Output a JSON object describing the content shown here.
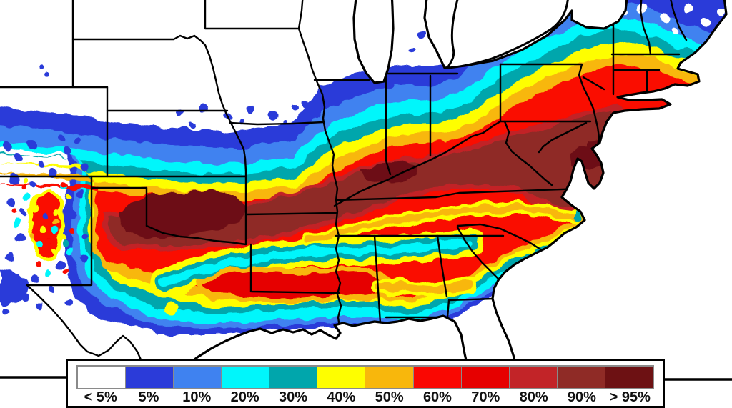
{
  "legend": {
    "box_border_color": "#000000",
    "frame_color": "#8A8A8A",
    "items": [
      {
        "label": "< 5%",
        "color": "#FFFFFF"
      },
      {
        "label": "5%",
        "color": "#2B3BD9"
      },
      {
        "label": "10%",
        "color": "#3F82F0"
      },
      {
        "label": "20%",
        "color": "#00F6FB"
      },
      {
        "label": "30%",
        "color": "#00A6AC"
      },
      {
        "label": "40%",
        "color": "#FEFE00"
      },
      {
        "label": "50%",
        "color": "#F8B70C"
      },
      {
        "label": "60%",
        "color": "#FA0702"
      },
      {
        "label": "70%",
        "color": "#E60000"
      },
      {
        "label": "80%",
        "color": "#C22428"
      },
      {
        "label": "90%",
        "color": "#8F2B26"
      },
      {
        "label": "> 95%",
        "color": "#6D1113"
      }
    ]
  },
  "map": {
    "background_color": "#FFFFFF",
    "line_color": "#000000"
  }
}
